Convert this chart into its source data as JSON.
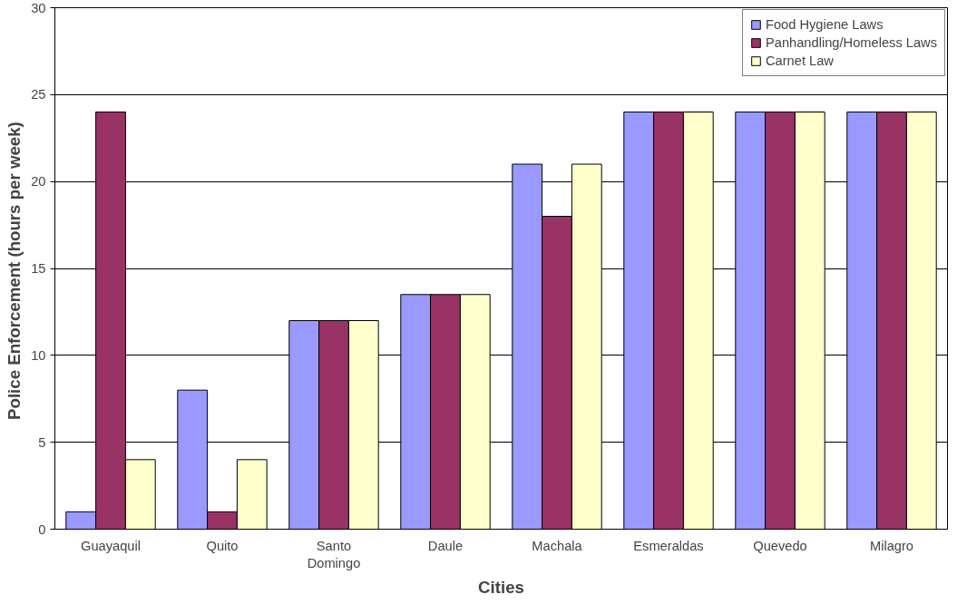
{
  "chart_data": {
    "type": "bar",
    "xlabel": "Cities",
    "ylabel": "Police Enforcement  (hours per week)",
    "categories": [
      "Guayaquil",
      "Quito",
      "Santo Domingo",
      "Daule",
      "Machala",
      "Esmeraldas",
      "Quevedo",
      "Milagro"
    ],
    "series": [
      {
        "name": "Food Hygiene Laws",
        "color": "#9999ff",
        "values": [
          1,
          8,
          12,
          13.5,
          21,
          24,
          24,
          24
        ]
      },
      {
        "name": "Panhandling/Homeless Laws",
        "color": "#993366",
        "values": [
          24,
          1,
          12,
          13.5,
          18,
          24,
          24,
          24
        ]
      },
      {
        "name": "Carnet Law",
        "color": "#ffffcc",
        "values": [
          4,
          4,
          12,
          13.5,
          21,
          24,
          24,
          24
        ]
      }
    ],
    "ylim": [
      0,
      30
    ],
    "yticks": [
      0,
      5,
      10,
      15,
      20,
      25,
      30
    ],
    "grid": "y",
    "legend": "top right"
  }
}
